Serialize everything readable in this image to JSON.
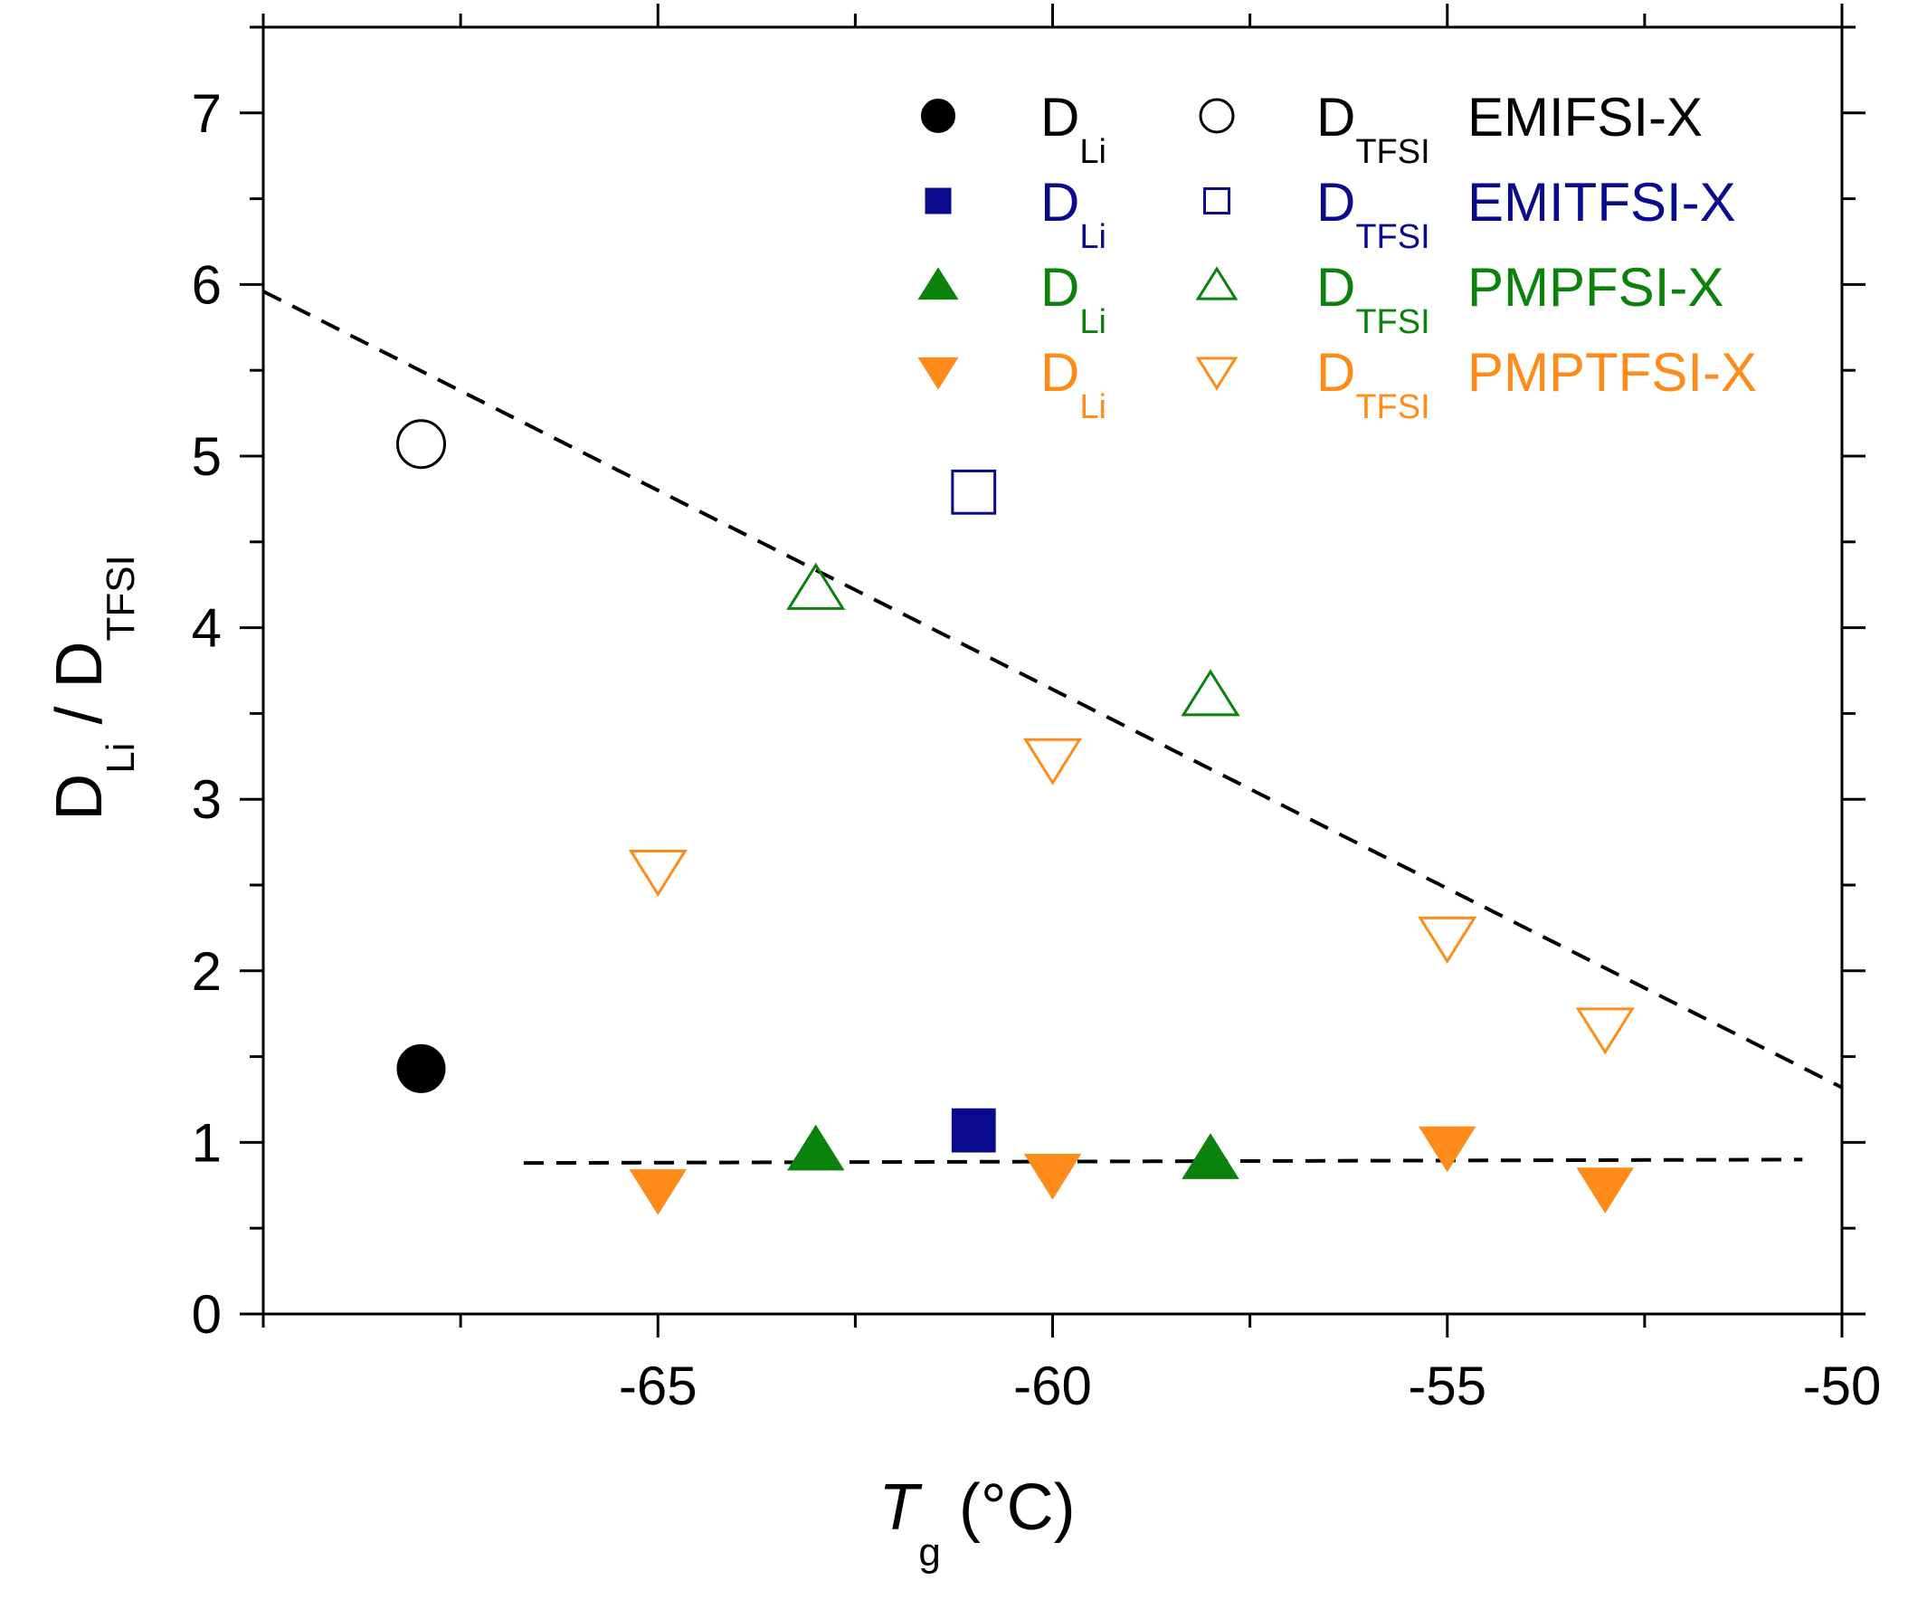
{
  "chart_data": {
    "type": "scatter",
    "title": "",
    "xlabel": {
      "main": "T",
      "sub": "g",
      "unit": " (°C)"
    },
    "ylabel": {
      "d1": "D",
      "sub1": "Li",
      "sep": " / ",
      "d2": "D",
      "sub2": "TFSI"
    },
    "xlim": [
      -70,
      -50
    ],
    "ylim": [
      0,
      7.5
    ],
    "x_ticks": [
      -65,
      -60,
      -55,
      -50
    ],
    "y_ticks": [
      0,
      1,
      2,
      3,
      4,
      5,
      6,
      7
    ],
    "x_minor_step": 2.5,
    "y_minor_step": 0.5,
    "legend_position": "top-right",
    "series": [
      {
        "name": "EMIFSI-X",
        "color": "#000000",
        "li_label": "D",
        "li_sub": "Li",
        "tfsi_label": "D",
        "tfsi_sub": "TFSI",
        "marker": "circle",
        "li": [
          {
            "x": -68,
            "y": 1.43
          }
        ],
        "tfsi": [
          {
            "x": -68,
            "y": 5.07
          }
        ]
      },
      {
        "name": "EMITFSI-X",
        "color": "#0a0a8c",
        "li_label": "D",
        "li_sub": "Li",
        "tfsi_label": "D",
        "tfsi_sub": "TFSI",
        "marker": "square",
        "li": [
          {
            "x": -61,
            "y": 1.07
          }
        ],
        "tfsi": [
          {
            "x": -61,
            "y": 4.79
          }
        ]
      },
      {
        "name": "PMPFSI-X",
        "color": "#0b820b",
        "li_label": "D",
        "li_sub": "Li",
        "tfsi_label": "D",
        "tfsi_sub": "TFSI",
        "marker": "triangle-up",
        "li": [
          {
            "x": -63,
            "y": 0.95
          },
          {
            "x": -58,
            "y": 0.9
          }
        ],
        "tfsi": [
          {
            "x": -63,
            "y": 4.22
          },
          {
            "x": -58,
            "y": 3.6
          }
        ]
      },
      {
        "name": "PMPTFSI-X",
        "color": "#ff8c1a",
        "li_label": "D",
        "li_sub": "Li",
        "tfsi_label": "D",
        "tfsi_sub": "TFSI",
        "marker": "triangle-down",
        "li": [
          {
            "x": -65,
            "y": 0.73
          },
          {
            "x": -60,
            "y": 0.82
          },
          {
            "x": -55,
            "y": 0.98
          },
          {
            "x": -53,
            "y": 0.74
          }
        ],
        "tfsi": [
          {
            "x": -65,
            "y": 2.59
          },
          {
            "x": -60,
            "y": 3.24
          },
          {
            "x": -55,
            "y": 2.2
          },
          {
            "x": -53,
            "y": 1.67
          }
        ]
      }
    ],
    "fit_lines": [
      {
        "name": "tfsi-trend",
        "color": "#000000",
        "style": "dashed",
        "points": [
          {
            "x": -70,
            "y": 5.96
          },
          {
            "x": -50,
            "y": 1.32
          }
        ]
      },
      {
        "name": "li-trend",
        "color": "#000000",
        "style": "dashed",
        "points": [
          {
            "x": -66.7,
            "y": 0.88
          },
          {
            "x": -50.5,
            "y": 0.9
          }
        ]
      }
    ]
  }
}
